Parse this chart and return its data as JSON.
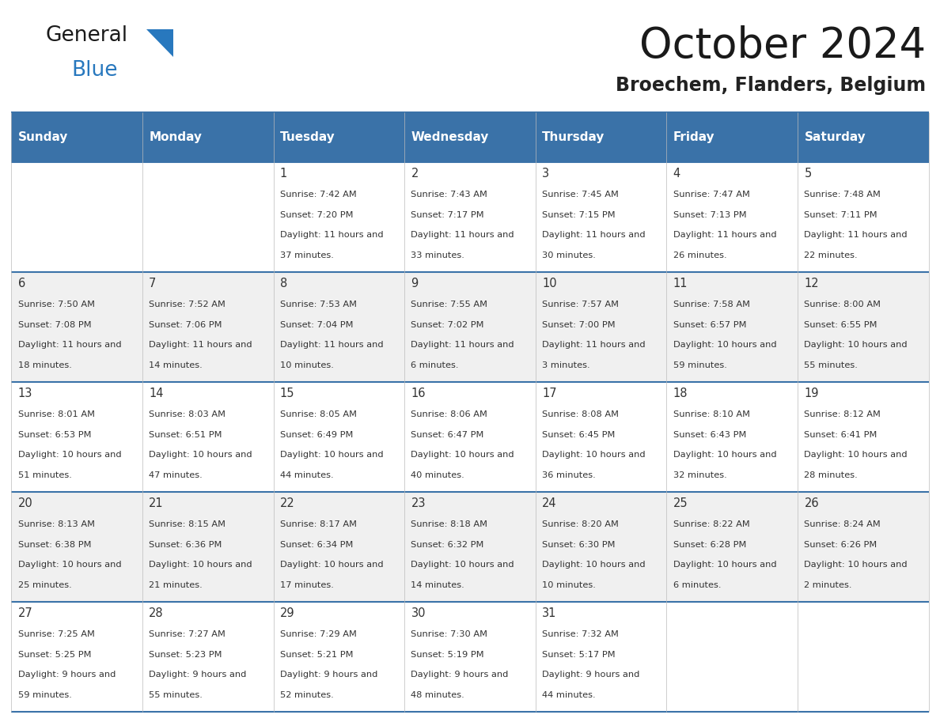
{
  "title": "October 2024",
  "subtitle": "Broechem, Flanders, Belgium",
  "header_color": "#3a72a8",
  "header_text_color": "#ffffff",
  "cell_bg_white": "#ffffff",
  "cell_bg_gray": "#f0f0f0",
  "border_color": "#3a72a8",
  "text_color": "#333333",
  "day_names": [
    "Sunday",
    "Monday",
    "Tuesday",
    "Wednesday",
    "Thursday",
    "Friday",
    "Saturday"
  ],
  "logo_general_color": "#1a1a1a",
  "logo_blue_color": "#2878be",
  "days": [
    {
      "date": 1,
      "col": 2,
      "row": 0,
      "sunrise": "7:42 AM",
      "sunset": "7:20 PM",
      "daylight": "11 hours and 37 minutes."
    },
    {
      "date": 2,
      "col": 3,
      "row": 0,
      "sunrise": "7:43 AM",
      "sunset": "7:17 PM",
      "daylight": "11 hours and 33 minutes."
    },
    {
      "date": 3,
      "col": 4,
      "row": 0,
      "sunrise": "7:45 AM",
      "sunset": "7:15 PM",
      "daylight": "11 hours and 30 minutes."
    },
    {
      "date": 4,
      "col": 5,
      "row": 0,
      "sunrise": "7:47 AM",
      "sunset": "7:13 PM",
      "daylight": "11 hours and 26 minutes."
    },
    {
      "date": 5,
      "col": 6,
      "row": 0,
      "sunrise": "7:48 AM",
      "sunset": "7:11 PM",
      "daylight": "11 hours and 22 minutes."
    },
    {
      "date": 6,
      "col": 0,
      "row": 1,
      "sunrise": "7:50 AM",
      "sunset": "7:08 PM",
      "daylight": "11 hours and 18 minutes."
    },
    {
      "date": 7,
      "col": 1,
      "row": 1,
      "sunrise": "7:52 AM",
      "sunset": "7:06 PM",
      "daylight": "11 hours and 14 minutes."
    },
    {
      "date": 8,
      "col": 2,
      "row": 1,
      "sunrise": "7:53 AM",
      "sunset": "7:04 PM",
      "daylight": "11 hours and 10 minutes."
    },
    {
      "date": 9,
      "col": 3,
      "row": 1,
      "sunrise": "7:55 AM",
      "sunset": "7:02 PM",
      "daylight": "11 hours and 6 minutes."
    },
    {
      "date": 10,
      "col": 4,
      "row": 1,
      "sunrise": "7:57 AM",
      "sunset": "7:00 PM",
      "daylight": "11 hours and 3 minutes."
    },
    {
      "date": 11,
      "col": 5,
      "row": 1,
      "sunrise": "7:58 AM",
      "sunset": "6:57 PM",
      "daylight": "10 hours and 59 minutes."
    },
    {
      "date": 12,
      "col": 6,
      "row": 1,
      "sunrise": "8:00 AM",
      "sunset": "6:55 PM",
      "daylight": "10 hours and 55 minutes."
    },
    {
      "date": 13,
      "col": 0,
      "row": 2,
      "sunrise": "8:01 AM",
      "sunset": "6:53 PM",
      "daylight": "10 hours and 51 minutes."
    },
    {
      "date": 14,
      "col": 1,
      "row": 2,
      "sunrise": "8:03 AM",
      "sunset": "6:51 PM",
      "daylight": "10 hours and 47 minutes."
    },
    {
      "date": 15,
      "col": 2,
      "row": 2,
      "sunrise": "8:05 AM",
      "sunset": "6:49 PM",
      "daylight": "10 hours and 44 minutes."
    },
    {
      "date": 16,
      "col": 3,
      "row": 2,
      "sunrise": "8:06 AM",
      "sunset": "6:47 PM",
      "daylight": "10 hours and 40 minutes."
    },
    {
      "date": 17,
      "col": 4,
      "row": 2,
      "sunrise": "8:08 AM",
      "sunset": "6:45 PM",
      "daylight": "10 hours and 36 minutes."
    },
    {
      "date": 18,
      "col": 5,
      "row": 2,
      "sunrise": "8:10 AM",
      "sunset": "6:43 PM",
      "daylight": "10 hours and 32 minutes."
    },
    {
      "date": 19,
      "col": 6,
      "row": 2,
      "sunrise": "8:12 AM",
      "sunset": "6:41 PM",
      "daylight": "10 hours and 28 minutes."
    },
    {
      "date": 20,
      "col": 0,
      "row": 3,
      "sunrise": "8:13 AM",
      "sunset": "6:38 PM",
      "daylight": "10 hours and 25 minutes."
    },
    {
      "date": 21,
      "col": 1,
      "row": 3,
      "sunrise": "8:15 AM",
      "sunset": "6:36 PM",
      "daylight": "10 hours and 21 minutes."
    },
    {
      "date": 22,
      "col": 2,
      "row": 3,
      "sunrise": "8:17 AM",
      "sunset": "6:34 PM",
      "daylight": "10 hours and 17 minutes."
    },
    {
      "date": 23,
      "col": 3,
      "row": 3,
      "sunrise": "8:18 AM",
      "sunset": "6:32 PM",
      "daylight": "10 hours and 14 minutes."
    },
    {
      "date": 24,
      "col": 4,
      "row": 3,
      "sunrise": "8:20 AM",
      "sunset": "6:30 PM",
      "daylight": "10 hours and 10 minutes."
    },
    {
      "date": 25,
      "col": 5,
      "row": 3,
      "sunrise": "8:22 AM",
      "sunset": "6:28 PM",
      "daylight": "10 hours and 6 minutes."
    },
    {
      "date": 26,
      "col": 6,
      "row": 3,
      "sunrise": "8:24 AM",
      "sunset": "6:26 PM",
      "daylight": "10 hours and 2 minutes."
    },
    {
      "date": 27,
      "col": 0,
      "row": 4,
      "sunrise": "7:25 AM",
      "sunset": "5:25 PM",
      "daylight": "9 hours and 59 minutes."
    },
    {
      "date": 28,
      "col": 1,
      "row": 4,
      "sunrise": "7:27 AM",
      "sunset": "5:23 PM",
      "daylight": "9 hours and 55 minutes."
    },
    {
      "date": 29,
      "col": 2,
      "row": 4,
      "sunrise": "7:29 AM",
      "sunset": "5:21 PM",
      "daylight": "9 hours and 52 minutes."
    },
    {
      "date": 30,
      "col": 3,
      "row": 4,
      "sunrise": "7:30 AM",
      "sunset": "5:19 PM",
      "daylight": "9 hours and 48 minutes."
    },
    {
      "date": 31,
      "col": 4,
      "row": 4,
      "sunrise": "7:32 AM",
      "sunset": "5:17 PM",
      "daylight": "9 hours and 44 minutes."
    }
  ]
}
